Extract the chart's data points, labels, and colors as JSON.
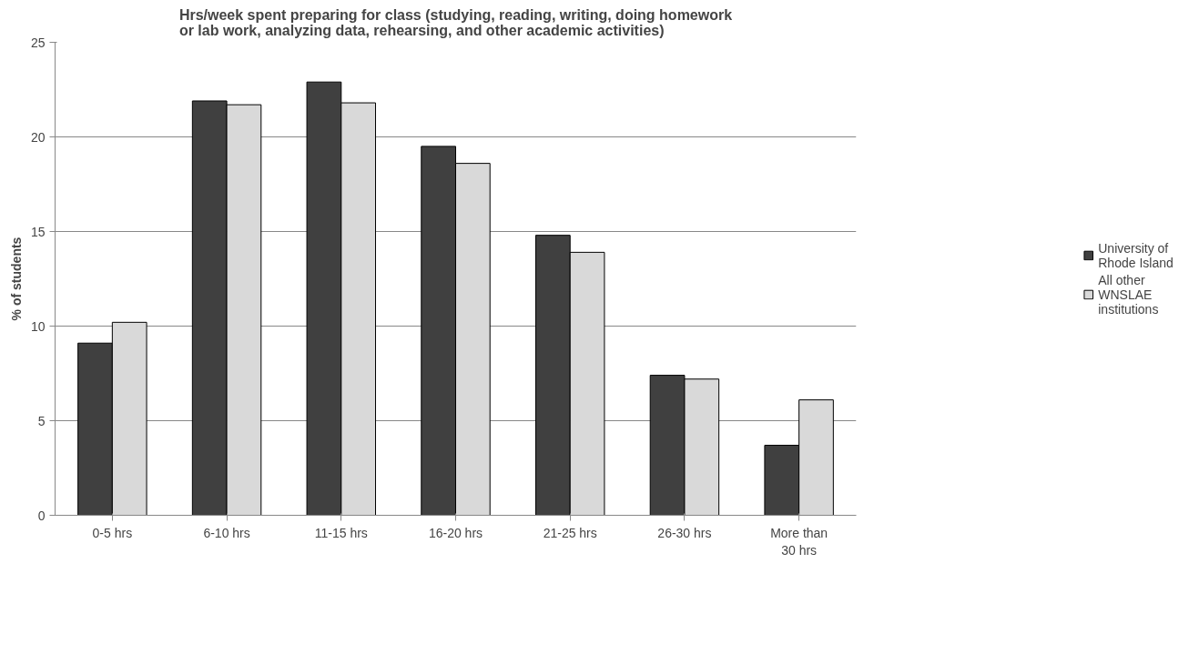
{
  "chart_data": {
    "type": "bar",
    "title": "Hrs/week spent preparing for class (studying, reading, writing, doing homework or lab work, analyzing data, rehearsing, and other academic activities)",
    "ylabel": "% of students",
    "categories": [
      "0-5 hrs",
      "6-10 hrs",
      "11-15 hrs",
      "16-20 hrs",
      "21-25 hrs",
      "26-30 hrs",
      "More than 30 hrs"
    ],
    "series": [
      {
        "name": "University of Rhode Island",
        "color": "#404040",
        "values": [
          9.1,
          21.9,
          22.9,
          19.5,
          14.8,
          7.4,
          3.7
        ]
      },
      {
        "name": "All other WNSLAE institutions",
        "color": "#d9d9d9",
        "values": [
          10.2,
          21.7,
          21.8,
          18.6,
          13.9,
          7.2,
          6.1
        ]
      }
    ],
    "ylim": [
      0,
      25
    ],
    "yticks": [
      0,
      5,
      10,
      15,
      20,
      25
    ],
    "grid": "y",
    "legend": "right"
  }
}
